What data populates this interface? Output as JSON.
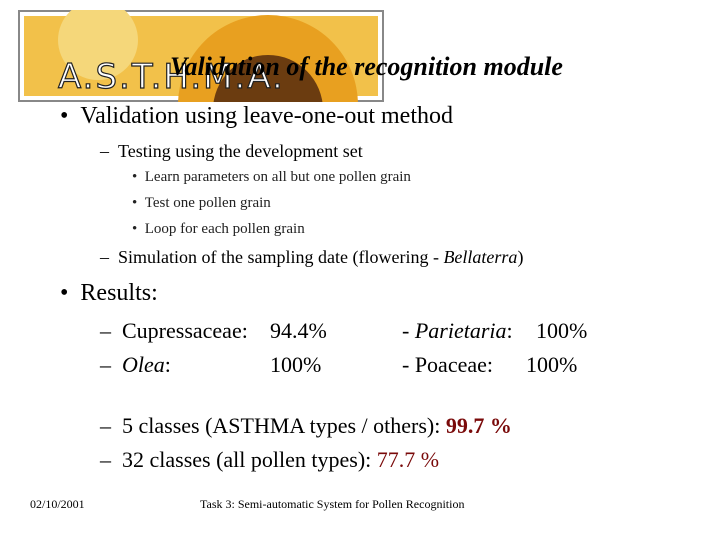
{
  "header": {
    "logo_text": "A.S.T.H.M.A.",
    "title": "Validation of the recognition module"
  },
  "validation": {
    "heading": "Validation using leave-one-out method",
    "dev_set": "Testing using the development set",
    "steps": [
      "Learn parameters on all but one pollen grain",
      "Test one pollen grain",
      "Loop for each pollen grain"
    ],
    "simulation": [
      "Simulation of the sampling date (flowering - ",
      "Bellaterra",
      ")"
    ]
  },
  "results": {
    "heading": "Results:",
    "rows": [
      {
        "name": [
          "Cupressaceae:"
        ],
        "value": "94.4%",
        "name2": [
          "- ",
          "Parietaria",
          ":"
        ],
        "value2": "100%"
      },
      {
        "name": [
          "Olea",
          ":"
        ],
        "value": "100%",
        "name2": [
          "- Poaceae:"
        ],
        "value2": "100%"
      }
    ],
    "classes": [
      {
        "label": "5 classes (ASTHMA types / others): ",
        "score": "99.7 %"
      },
      {
        "label": "32 classes (all pollen types): ",
        "score": "77.7 %"
      }
    ]
  },
  "footer": {
    "date": "02/10/2001",
    "caption": "Task 3: Semi-automatic System for Pollen Recognition"
  }
}
